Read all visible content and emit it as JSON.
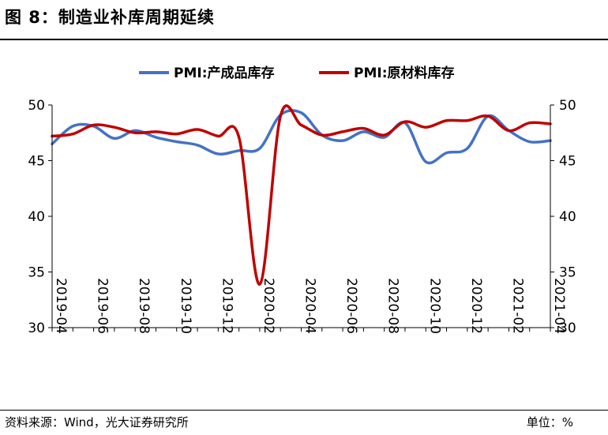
{
  "figure": {
    "title": "图 8：制造业补库周期延续",
    "source": "资料来源：Wind，光大证券研究所",
    "unit": "单位：%"
  },
  "chart_data": {
    "type": "line",
    "title": "图 8：制造业补库周期延续",
    "xlabel": "",
    "ylabel_left": "",
    "ylabel_right": "",
    "ylim": [
      30,
      50
    ],
    "yticks": [
      30,
      35,
      40,
      45,
      50
    ],
    "categories": [
      "2019-04",
      "2019-05",
      "2019-06",
      "2019-07",
      "2019-08",
      "2019-09",
      "2019-10",
      "2019-11",
      "2019-12",
      "2020-01",
      "2020-02",
      "2020-03",
      "2020-04",
      "2020-05",
      "2020-06",
      "2020-07",
      "2020-08",
      "2020-09",
      "2020-10",
      "2020-11",
      "2020-12",
      "2021-01",
      "2021-02",
      "2021-03",
      "2021-04"
    ],
    "xtick_labels": [
      "2019-04",
      "2019-06",
      "2019-08",
      "2019-10",
      "2019-12",
      "2020-02",
      "2020-04",
      "2020-06",
      "2020-08",
      "2020-10",
      "2020-12",
      "2021-02",
      "2021-04"
    ],
    "legend_position": "top-center",
    "series": [
      {
        "name": "PMI:产成品库存",
        "color": "#4472C4",
        "values": [
          46.5,
          48.1,
          48.1,
          47.0,
          47.7,
          47.1,
          46.7,
          46.4,
          45.6,
          45.9,
          46.1,
          49.1,
          49.3,
          47.3,
          46.8,
          47.6,
          47.1,
          48.4,
          44.9,
          45.7,
          46.1,
          49.0,
          47.7,
          46.7,
          46.8
        ]
      },
      {
        "name": "PMI:原材料库存",
        "color": "#C00000",
        "values": [
          47.2,
          47.4,
          48.2,
          48.0,
          47.5,
          47.6,
          47.4,
          47.8,
          47.2,
          47.1,
          33.9,
          49.0,
          48.2,
          47.3,
          47.6,
          47.9,
          47.3,
          48.5,
          48.0,
          48.6,
          48.6,
          49.0,
          47.7,
          48.4,
          48.3
        ]
      }
    ]
  }
}
